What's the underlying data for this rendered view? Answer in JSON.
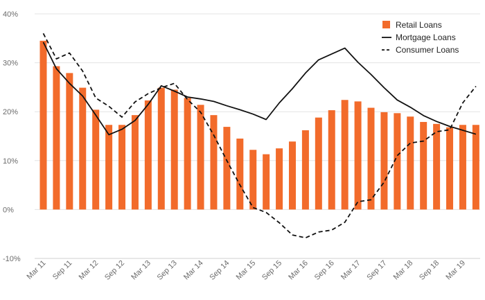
{
  "chart_data": {
    "type": "bar",
    "title": "",
    "xlabel": "",
    "ylabel": "",
    "ylim": [
      -10,
      40
    ],
    "y_ticks": [
      "-10%",
      "0%",
      "10%",
      "20%",
      "30%",
      "40%"
    ],
    "y_tick_values": [
      -10,
      0,
      10,
      20,
      30,
      40
    ],
    "grid": "horizontal",
    "legend_position": "top-right",
    "x_tick_labels": [
      "Mar 11",
      "Sep 11",
      "Mar 12",
      "Sep 12",
      "Mar 13",
      "Sep 13",
      "Mar 14",
      "Sep 14",
      "Mar 15",
      "Sep 15",
      "Mar 16",
      "Sep 16",
      "Mar 17",
      "Sep 17",
      "Mar 18",
      "Sep 18",
      "Mar 19"
    ],
    "categories": [
      "Mar 11",
      "Jun 11",
      "Sep 11",
      "Dec 11",
      "Mar 12",
      "Jun 12",
      "Sep 12",
      "Dec 12",
      "Mar 13",
      "Jun 13",
      "Sep 13",
      "Dec 13",
      "Mar 14",
      "Jun 14",
      "Sep 14",
      "Dec 14",
      "Mar 15",
      "Jun 15",
      "Sep 15",
      "Dec 15",
      "Mar 16",
      "Jun 16",
      "Sep 16",
      "Dec 16",
      "Mar 17",
      "Jun 17",
      "Sep 17",
      "Dec 17",
      "Mar 18",
      "Jun 18",
      "Sep 18",
      "Dec 18",
      "Mar 19",
      "Jun 19"
    ],
    "series": [
      {
        "name": "Retail Loans",
        "type": "bar",
        "color": "#f26b2b",
        "values": [
          34.5,
          29.3,
          27.9,
          24.9,
          20.4,
          17.3,
          17.3,
          19.3,
          22.3,
          24.9,
          24.5,
          22.8,
          21.4,
          19.3,
          16.9,
          14.5,
          12.2,
          11.3,
          12.5,
          13.9,
          16.2,
          18.8,
          20.3,
          22.4,
          22.1,
          20.8,
          19.9,
          19.7,
          19.0,
          17.9,
          17.5,
          16.8,
          17.3,
          17.3
        ]
      },
      {
        "name": "Mortgage Loans",
        "type": "line",
        "style": "solid",
        "color": "#111111",
        "values": [
          34.2,
          28.8,
          25.8,
          23.2,
          19.3,
          15.3,
          16.4,
          18.2,
          21.5,
          25.3,
          24.2,
          23.0,
          22.6,
          22.1,
          21.2,
          20.4,
          19.5,
          18.4,
          21.8,
          24.7,
          27.9,
          30.6,
          31.8,
          33.0,
          30.1,
          27.6,
          24.9,
          22.4,
          20.9,
          19.2,
          18.0,
          17.0,
          16.2,
          15.4
        ]
      },
      {
        "name": "Consumer Loans",
        "type": "line",
        "style": "dashed",
        "color": "#111111",
        "values": [
          36.0,
          30.8,
          32.0,
          28.3,
          22.8,
          21.1,
          18.9,
          22.0,
          23.7,
          24.9,
          25.8,
          22.5,
          19.9,
          15.2,
          10.0,
          5.0,
          0.4,
          -0.6,
          -2.7,
          -5.2,
          -5.8,
          -4.6,
          -4.2,
          -2.6,
          1.6,
          2.0,
          5.6,
          11.0,
          13.6,
          14.0,
          15.9,
          16.3,
          21.8,
          25.2
        ]
      }
    ]
  }
}
